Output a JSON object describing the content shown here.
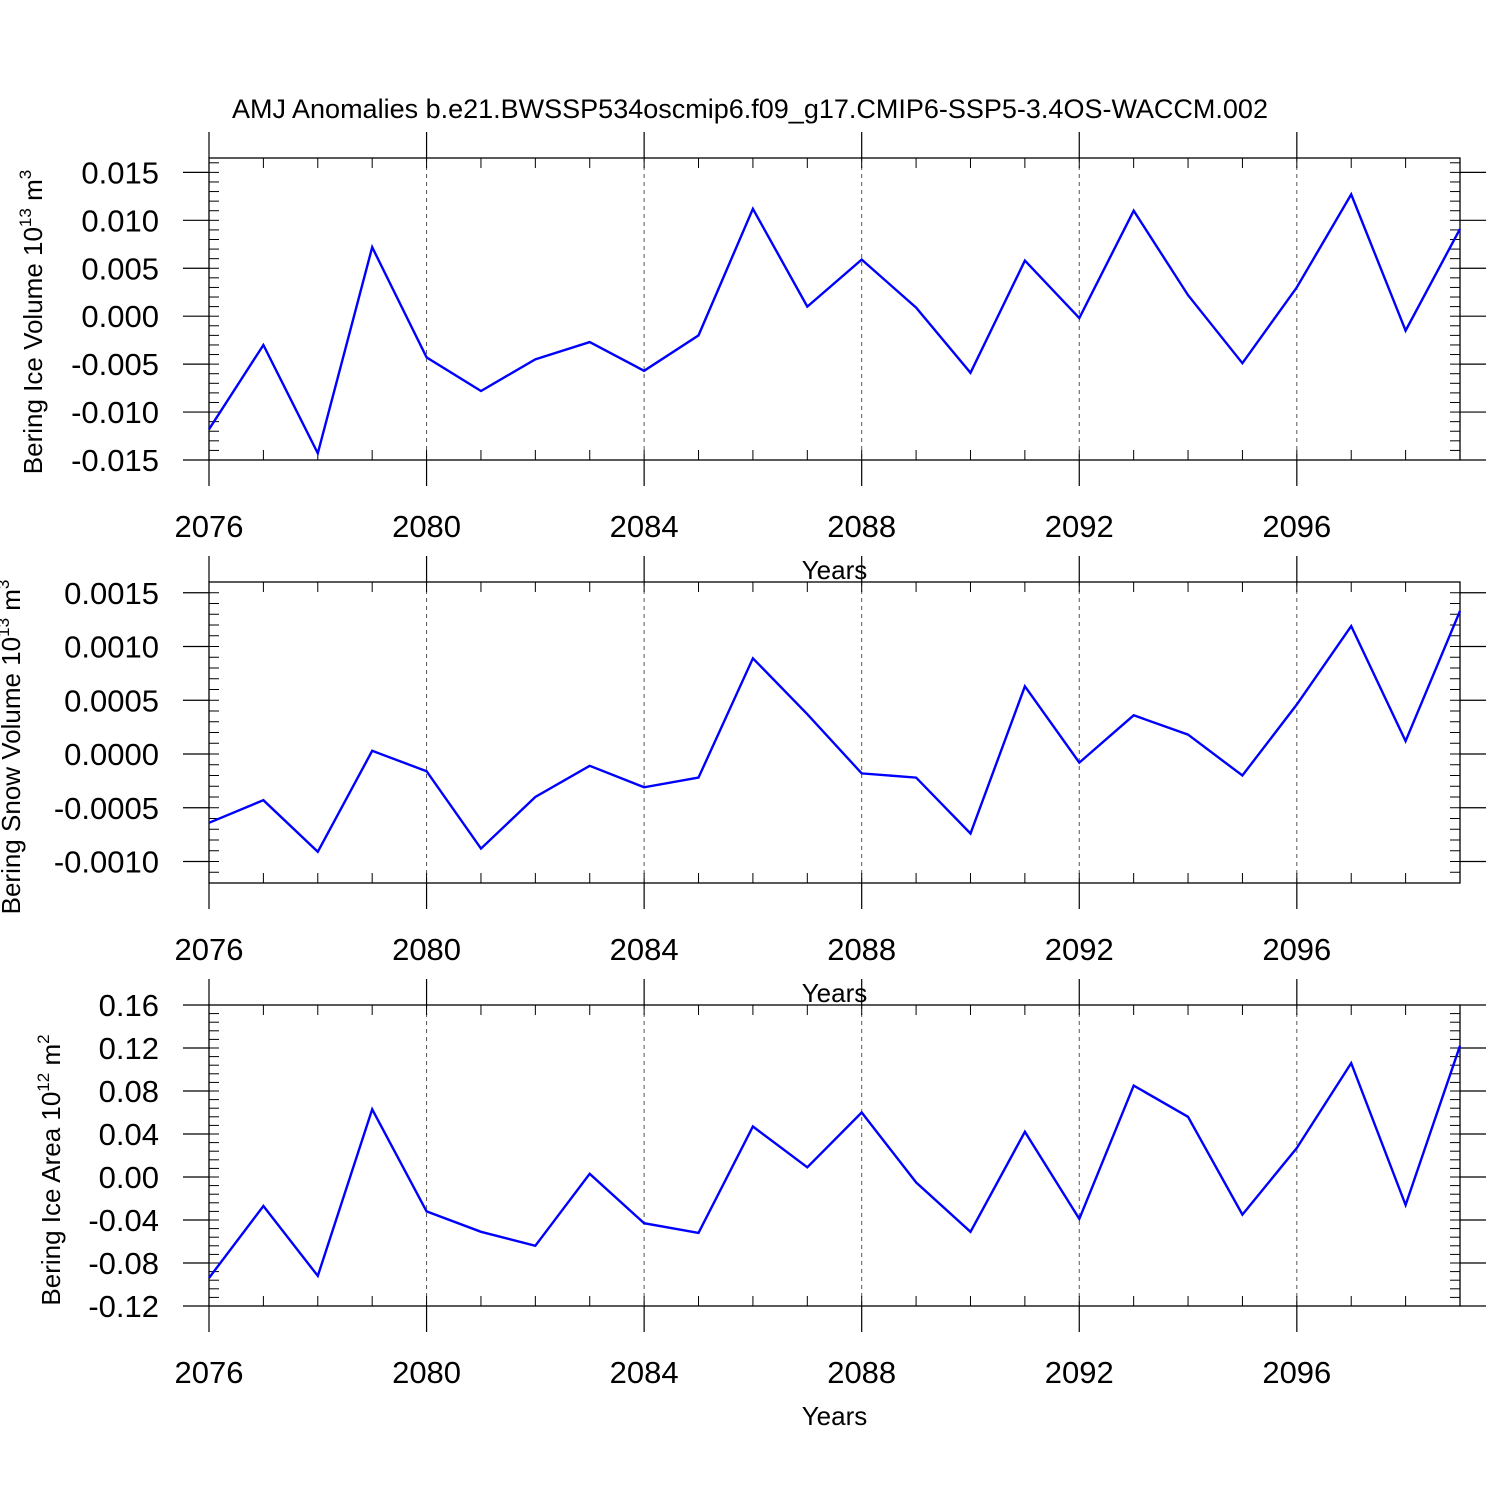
{
  "title": "AMJ Anomalies b.e21.BWSSP534oscmip6.f09_g17.CMIP6-SSP5-3.4OS-WACCM.002",
  "chart_data": [
    {
      "type": "line",
      "ylabel": "Bering Ice Volume 10",
      "ylabel_exp": "13",
      "ylabel_unit": " m",
      "ylabel_unit_exp": "3",
      "xlabel": "Years",
      "xlim": [
        2076,
        2099
      ],
      "ylim": [
        -0.015,
        0.0165
      ],
      "yticks": [
        -0.015,
        -0.01,
        -0.005,
        0.0,
        0.005,
        0.01,
        0.015
      ],
      "ytick_labels": [
        "-0.015",
        "-0.010",
        "-0.005",
        "0.000",
        "0.005",
        "0.010",
        "0.015"
      ],
      "xticks": [
        2076,
        2080,
        2084,
        2088,
        2092,
        2096
      ],
      "xtick_labels": [
        "2076",
        "2080",
        "2084",
        "2088",
        "2092",
        "2096"
      ],
      "grid_x": [
        2080,
        2084,
        2088,
        2092,
        2096
      ],
      "line_color": "#0000ff",
      "x": [
        2076,
        2077,
        2078,
        2079,
        2080,
        2081,
        2082,
        2083,
        2084,
        2085,
        2086,
        2087,
        2088,
        2089,
        2090,
        2091,
        2092,
        2093,
        2094,
        2095,
        2096,
        2097,
        2098,
        2099
      ],
      "values": [
        -0.0118,
        -0.003,
        -0.0143,
        0.0072,
        -0.0043,
        -0.0078,
        -0.0045,
        -0.0027,
        -0.0057,
        -0.002,
        0.0112,
        0.001,
        0.0059,
        0.0009,
        -0.0059,
        0.0058,
        -0.0002,
        0.011,
        0.0022,
        -0.0049,
        0.003,
        0.0127,
        -0.0015,
        0.0091
      ]
    },
    {
      "type": "line",
      "ylabel": "Bering Snow Volume 10",
      "ylabel_exp": "13",
      "ylabel_unit": " m",
      "ylabel_unit_exp": "3",
      "xlabel": "Years",
      "xlim": [
        2076,
        2099
      ],
      "ylim": [
        -0.0012,
        0.0016
      ],
      "yticks": [
        -0.001,
        -0.0005,
        0.0,
        0.0005,
        0.001,
        0.0015
      ],
      "ytick_labels": [
        "-0.0010",
        "-0.0005",
        "0.0000",
        "0.0005",
        "0.0010",
        "0.0015"
      ],
      "xticks": [
        2076,
        2080,
        2084,
        2088,
        2092,
        2096
      ],
      "xtick_labels": [
        "2076",
        "2080",
        "2084",
        "2088",
        "2092",
        "2096"
      ],
      "grid_x": [
        2080,
        2084,
        2088,
        2092,
        2096
      ],
      "line_color": "#0000ff",
      "x": [
        2076,
        2077,
        2078,
        2079,
        2080,
        2081,
        2082,
        2083,
        2084,
        2085,
        2086,
        2087,
        2088,
        2089,
        2090,
        2091,
        2092,
        2093,
        2094,
        2095,
        2096,
        2097,
        2098,
        2099
      ],
      "values": [
        -0.00064,
        -0.00043,
        -0.00091,
        3e-05,
        -0.00016,
        -0.00088,
        -0.0004,
        -0.00011,
        -0.00031,
        -0.00022,
        0.00089,
        0.00037,
        -0.00018,
        -0.00022,
        -0.00074,
        0.00063,
        -8e-05,
        0.00036,
        0.00018,
        -0.0002,
        0.00046,
        0.00119,
        0.00012,
        0.00133
      ]
    },
    {
      "type": "line",
      "ylabel": "Bering Ice Area 10",
      "ylabel_exp": "12",
      "ylabel_unit": " m",
      "ylabel_unit_exp": "2",
      "xlabel": "Years",
      "xlim": [
        2076,
        2099
      ],
      "ylim": [
        -0.12,
        0.16
      ],
      "yticks": [
        -0.12,
        -0.08,
        -0.04,
        0.0,
        0.04,
        0.08,
        0.12,
        0.16
      ],
      "ytick_labels": [
        "-0.12",
        "-0.08",
        "-0.04",
        "0.00",
        "0.04",
        "0.08",
        "0.12",
        "0.16"
      ],
      "xticks": [
        2076,
        2080,
        2084,
        2088,
        2092,
        2096
      ],
      "xtick_labels": [
        "2076",
        "2080",
        "2084",
        "2088",
        "2092",
        "2096"
      ],
      "grid_x": [
        2080,
        2084,
        2088,
        2092,
        2096
      ],
      "line_color": "#0000ff",
      "x": [
        2076,
        2077,
        2078,
        2079,
        2080,
        2081,
        2082,
        2083,
        2084,
        2085,
        2086,
        2087,
        2088,
        2089,
        2090,
        2091,
        2092,
        2093,
        2094,
        2095,
        2096,
        2097,
        2098,
        2099
      ],
      "values": [
        -0.094,
        -0.027,
        -0.092,
        0.063,
        -0.032,
        -0.051,
        -0.064,
        0.003,
        -0.043,
        -0.052,
        0.047,
        0.009,
        0.06,
        -0.005,
        -0.051,
        0.042,
        -0.039,
        0.085,
        0.056,
        -0.035,
        0.027,
        0.106,
        -0.026,
        0.122
      ]
    }
  ]
}
